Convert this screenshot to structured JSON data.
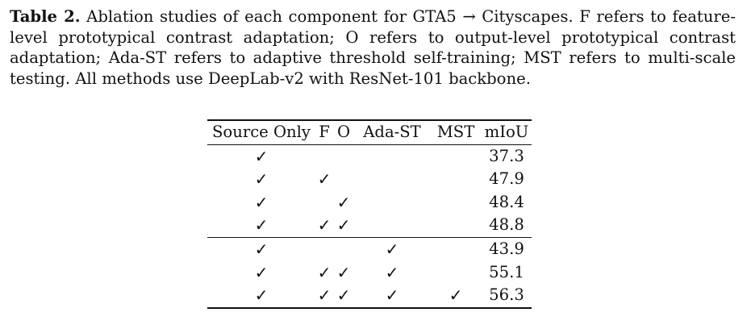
{
  "caption": {
    "label": "Table 2.",
    "text": " Ablation studies of each component for GTA5 → Cityscapes. F refers to feature-level prototypical contrast adaptation; O refers to output-level prototypical contrast adaptation; Ada-ST refers to adaptive threshold self-training; MST refers to multi-scale testing. All methods use DeepLab-v2 with ResNet-101 backbone."
  },
  "table": {
    "headers": [
      "Source Only",
      "F",
      "O",
      "Ada-ST",
      "MST",
      "mIoU"
    ],
    "check_symbol": "✓",
    "rows": [
      {
        "src": "✓",
        "f": "",
        "o": "",
        "ada": "",
        "mst": "",
        "miou": "37.3"
      },
      {
        "src": "✓",
        "f": "✓",
        "o": "",
        "ada": "",
        "mst": "",
        "miou": "47.9"
      },
      {
        "src": "✓",
        "f": "",
        "o": "✓",
        "ada": "",
        "mst": "",
        "miou": "48.4"
      },
      {
        "src": "✓",
        "f": "✓",
        "o": "✓",
        "ada": "",
        "mst": "",
        "miou": "48.8"
      },
      {
        "src": "✓",
        "f": "",
        "o": "",
        "ada": "✓",
        "mst": "",
        "miou": "43.9"
      },
      {
        "src": "✓",
        "f": "✓",
        "o": "✓",
        "ada": "✓",
        "mst": "",
        "miou": "55.1"
      },
      {
        "src": "✓",
        "f": "✓",
        "o": "✓",
        "ada": "✓",
        "mst": "✓",
        "miou": "56.3"
      }
    ]
  }
}
